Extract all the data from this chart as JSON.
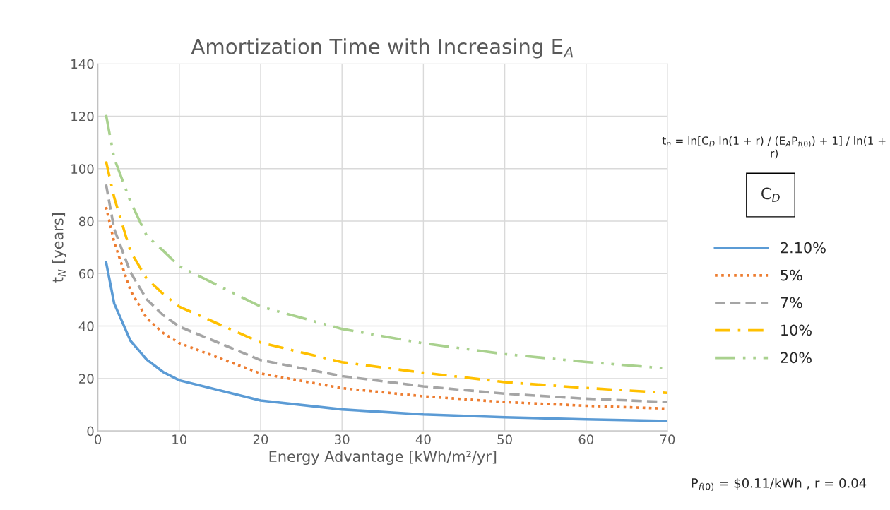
{
  "chart_data": {
    "type": "line",
    "title": "Amortization Time with Increasing E$_{A}$",
    "xlabel": "Energy Advantage [kWh/m²/yr]",
    "ylabel": "t$_{N}$ [years]",
    "legend_title": "C$_{D}$",
    "x": [
      1,
      2,
      4,
      6,
      8,
      10,
      20,
      30,
      40,
      50,
      60,
      70
    ],
    "series": [
      {
        "name": "2.10%",
        "color": "#5b9bd5",
        "line_style": "solid",
        "values": [
          64.4,
          48.6,
          34.4,
          27.2,
          22.5,
          19.3,
          11.6,
          8.2,
          6.3,
          5.2,
          4.4,
          3.8
        ]
      },
      {
        "name": "5%",
        "color": "#ed7d31",
        "line_style": "dotted",
        "values": [
          85.4,
          72,
          53.5,
          43,
          37.4,
          33.5,
          21.9,
          16.3,
          13.2,
          11,
          9.6,
          8.5
        ]
      },
      {
        "name": "7%",
        "color": "#a5a5a5",
        "line_style": "dashed",
        "values": [
          94,
          77,
          60.5,
          50.2,
          44.2,
          39.8,
          27,
          20.9,
          17,
          14.2,
          12.3,
          11
        ]
      },
      {
        "name": "10%",
        "color": "#ffc000",
        "line_style": "dashdot",
        "values": [
          102.8,
          89,
          68.5,
          58,
          52.3,
          47.4,
          33.7,
          26.2,
          22.2,
          18.6,
          16.4,
          14.5
        ]
      },
      {
        "name": "20%",
        "color": "#a9d18e",
        "line_style": "dashdotdot",
        "values": [
          120.5,
          104,
          87.4,
          74.4,
          68.8,
          62.8,
          47.4,
          38.9,
          33.4,
          29.3,
          26.3,
          23.8
        ]
      }
    ],
    "xlim": [
      0,
      70
    ],
    "xticks": [
      0,
      10,
      20,
      30,
      40,
      50,
      60,
      70
    ],
    "ylim": [
      0,
      140
    ],
    "yticks": [
      0,
      20,
      40,
      60,
      80,
      100,
      120,
      140
    ],
    "grid": true,
    "legend": "right",
    "marker": "none",
    "annotations": [
      "t$_{n}$ = ln[C$_{D}$ ln(1 + r) / (E$_{A}$P$_{f(0)}$) + 1] / ln(1 + r)",
      "P$_{f(0)}$ = $0.11/kWh , r = 0.04"
    ]
  }
}
